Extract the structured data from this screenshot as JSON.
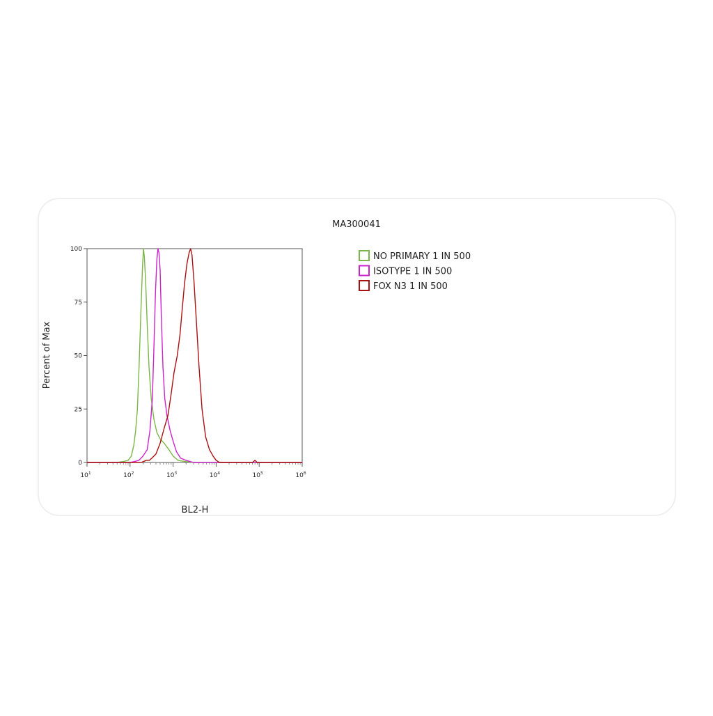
{
  "chart_data": {
    "type": "line",
    "title": "MA300041",
    "xlabel": "BL2-H",
    "ylabel": "Percent of Max",
    "x_scale": "log",
    "xlim": [
      10,
      1000000
    ],
    "ylim": [
      0,
      100
    ],
    "x_ticks": [
      {
        "value": 10,
        "base": "10",
        "exp": "1"
      },
      {
        "value": 100,
        "base": "10",
        "exp": "2"
      },
      {
        "value": 1000,
        "base": "10",
        "exp": "3"
      },
      {
        "value": 10000,
        "base": "10",
        "exp": "4"
      },
      {
        "value": 100000,
        "base": "10",
        "exp": "5"
      },
      {
        "value": 1000000,
        "base": "10",
        "exp": "6"
      }
    ],
    "y_ticks": [
      "0",
      "25",
      "50",
      "75",
      "100"
    ],
    "legend_position": "top-right",
    "series": [
      {
        "name": "NO PRIMARY 1 IN 500",
        "color": "#7ab648",
        "x": [
          10,
          50,
          72,
          90,
          107,
          122,
          135,
          148,
          162,
          178,
          195,
          205,
          215,
          230,
          250,
          275,
          310,
          360,
          420,
          500,
          620,
          800,
          1000,
          1300,
          1800,
          3000,
          10000,
          1000000
        ],
        "y": [
          0,
          0,
          0.5,
          1,
          3,
          8,
          15,
          25,
          45,
          70,
          92,
          100,
          96,
          85,
          65,
          45,
          30,
          20,
          14,
          11,
          9,
          6,
          3,
          1,
          0.5,
          0,
          0,
          0
        ]
      },
      {
        "name": "ISOTYPE 1 IN 500",
        "color": "#cc22cc",
        "x": [
          10,
          100,
          130,
          160,
          200,
          250,
          290,
          330,
          360,
          390,
          420,
          445,
          470,
          500,
          530,
          580,
          640,
          720,
          850,
          1000,
          1200,
          1500,
          2000,
          3000,
          10000,
          1000000
        ],
        "y": [
          0,
          0,
          0.5,
          1,
          3,
          6,
          15,
          30,
          55,
          80,
          95,
          100,
          98,
          90,
          70,
          45,
          30,
          22,
          15,
          10,
          5,
          2,
          1,
          0,
          0,
          0
        ]
      },
      {
        "name": "FOX N3 1 IN 500",
        "color": "#aa1111",
        "x": [
          10,
          180,
          240,
          280,
          320,
          400,
          500,
          620,
          760,
          900,
          1050,
          1250,
          1450,
          1650,
          1850,
          2100,
          2350,
          2550,
          2750,
          3050,
          3500,
          4000,
          4700,
          5700,
          7000,
          8500,
          10000,
          12000,
          30000,
          70000,
          80000,
          90000,
          1000000
        ],
        "y": [
          0,
          0,
          1,
          1,
          2,
          4,
          9,
          16,
          22,
          32,
          42,
          50,
          60,
          73,
          84,
          93,
          98,
          100,
          97,
          85,
          65,
          45,
          25,
          12,
          6,
          3,
          1,
          0,
          0,
          0,
          1,
          0,
          0
        ]
      }
    ]
  }
}
